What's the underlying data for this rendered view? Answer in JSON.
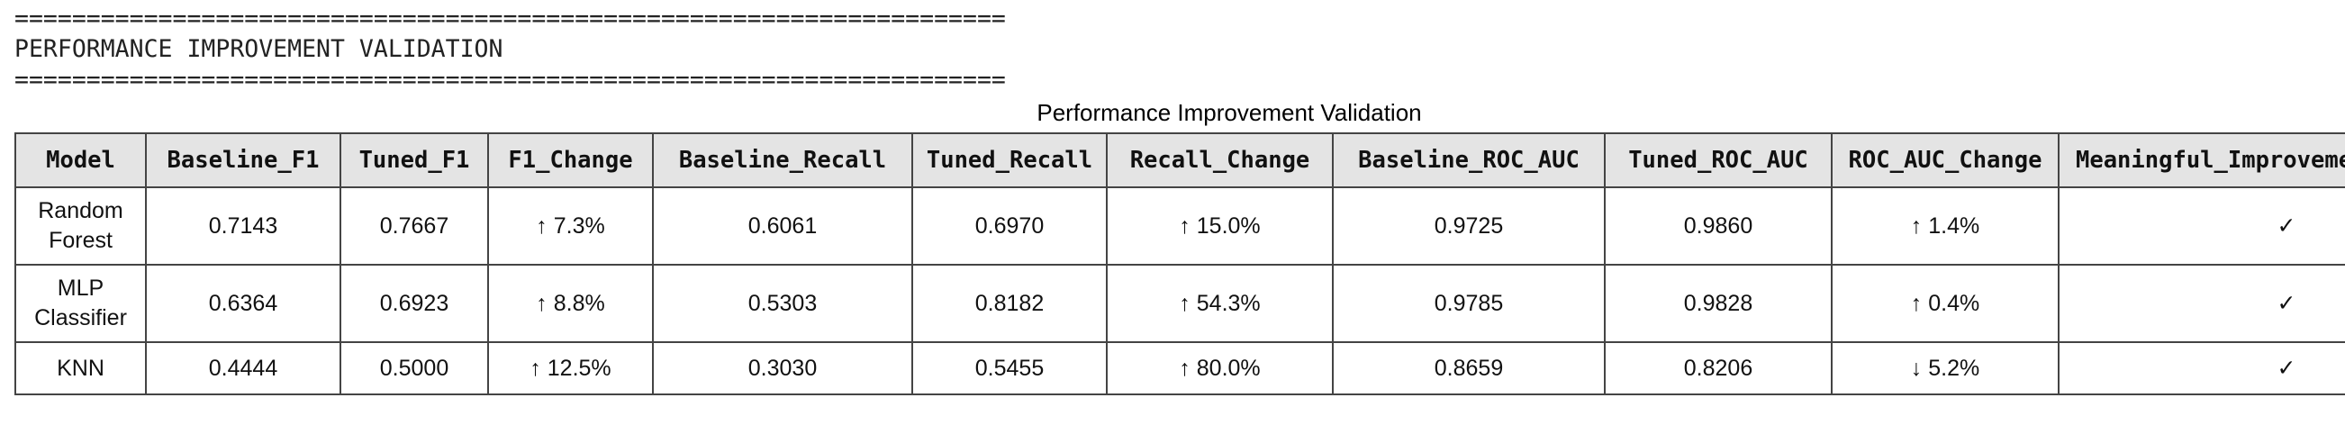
{
  "console": {
    "rule_top": "=====================================================================",
    "heading": "PERFORMANCE IMPROVEMENT VALIDATION",
    "rule_bottom": "====================================================================="
  },
  "table": {
    "title": "Performance Improvement Validation",
    "headers": [
      "Model",
      "Baseline_F1",
      "Tuned_F1",
      "F1_Change",
      "Baseline_Recall",
      "Tuned_Recall",
      "Recall_Change",
      "Baseline_ROC_AUC",
      "Tuned_ROC_AUC",
      "ROC_AUC_Change",
      "Meaningful_Improvement"
    ],
    "rows": [
      [
        "Random Forest",
        "0.7143",
        "0.7667",
        "↑ 7.3%",
        "0.6061",
        "0.6970",
        "↑ 15.0%",
        "0.9725",
        "0.9860",
        "↑ 1.4%",
        "✓"
      ],
      [
        "MLP Classifier",
        "0.6364",
        "0.6923",
        "↑ 8.8%",
        "0.5303",
        "0.8182",
        "↑ 54.3%",
        "0.9785",
        "0.9828",
        "↑ 0.4%",
        "✓"
      ],
      [
        "KNN",
        "0.4444",
        "0.5000",
        "↑ 12.5%",
        "0.3030",
        "0.5455",
        "↑ 80.0%",
        "0.8659",
        "0.8206",
        "↓ 5.2%",
        "✓"
      ]
    ]
  }
}
